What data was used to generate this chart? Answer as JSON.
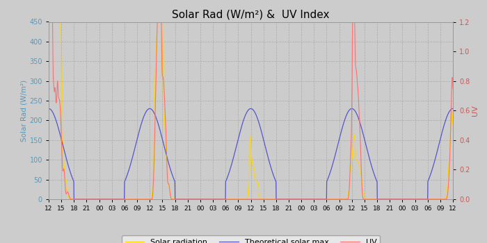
{
  "title": "Solar Rad (W/m²) &  UV Index",
  "ylabel_left": "Solar Rad (W/m²)",
  "ylabel_right": "UV",
  "ylim_left": [
    0,
    450
  ],
  "ylim_right": [
    0,
    1.2
  ],
  "yticks_left": [
    0.0,
    50.0,
    100.0,
    150.0,
    200.0,
    250.0,
    300.0,
    350.0,
    400.0,
    450.0
  ],
  "yticks_right": [
    0.0,
    0.2,
    0.4,
    0.6,
    0.8,
    1.0,
    1.2
  ],
  "xtick_labels": [
    "12",
    "15",
    "18",
    "21",
    "00",
    "03",
    "06",
    "09",
    "12",
    "15",
    "18",
    "21",
    "00",
    "03",
    "06",
    "09",
    "12",
    "15",
    "18",
    "21",
    "00",
    "03",
    "06",
    "09",
    "12",
    "15",
    "18",
    "21",
    "00",
    "03",
    "06",
    "09",
    "12"
  ],
  "color_solar": "#FFD700",
  "color_theoretical": "#5555CC",
  "color_uv": "#FF7070",
  "background_color": "#CCCCCC",
  "grid_color": "#BBBBBB",
  "title_fontsize": 11,
  "legend_items": [
    "Solar radiation",
    "Theoretical solar max",
    "UV"
  ]
}
